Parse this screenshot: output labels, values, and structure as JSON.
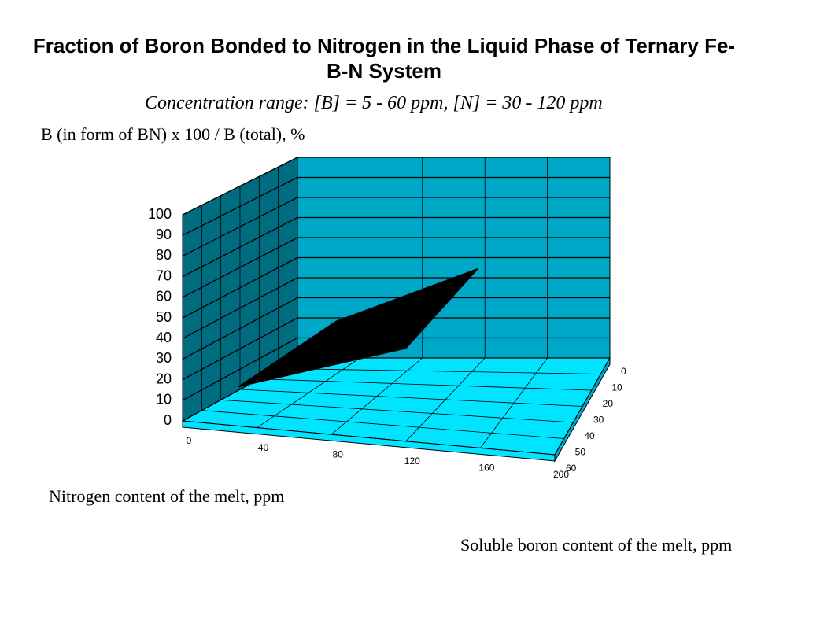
{
  "chart_data": {
    "type": "surface3d",
    "title": "Fraction of Boron Bonded to Nitrogen in the Liquid Phase of Ternary Fe-B-N System",
    "subtitle": "Concentration range: [B] = 5 - 60 ppm, [N] = 30 - 120 ppm",
    "zlabel": "B (in form of BN) x 100 / B (total), %",
    "xlabel": "Nitrogen content of the melt, ppm",
    "ylabel": "Soluble boron content of the melt, ppm",
    "x": [
      30,
      120
    ],
    "y": [
      5,
      60
    ],
    "z": [
      [
        21,
        48
      ],
      [
        19,
        45
      ]
    ],
    "color": "#000000",
    "xlim": [
      0,
      200
    ],
    "xticks": [
      0,
      40,
      80,
      120,
      160,
      200
    ],
    "ylim": [
      0,
      60
    ],
    "yticks": [
      0,
      10,
      20,
      30,
      40,
      50,
      60
    ],
    "zlim": [
      0,
      100
    ],
    "zticks": [
      0,
      10,
      20,
      30,
      40,
      50,
      60,
      70,
      80,
      90,
      100
    ],
    "grid": true,
    "back_wall_color": "#00a8c8",
    "side_wall_color": "#006c80",
    "floor_color": "#00e4ff"
  }
}
